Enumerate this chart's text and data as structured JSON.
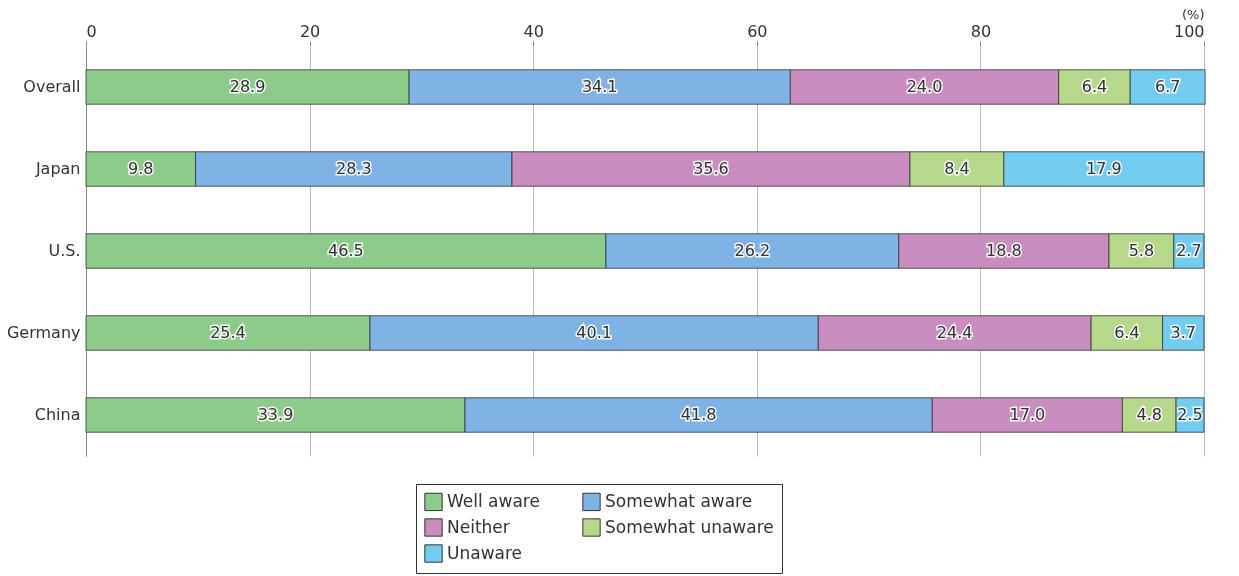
{
  "chart_data": {
    "type": "bar",
    "orientation": "horizontal",
    "stacked": true,
    "xlabel": "(%)",
    "categories": [
      "Overall",
      "Japan",
      "U.S.",
      "Germany",
      "China"
    ],
    "series": [
      {
        "name": "Well aware",
        "color": "#8dcb8b",
        "values": [
          28.9,
          9.8,
          46.5,
          25.4,
          33.9
        ],
        "value_labels": [
          "28.9",
          "9.8",
          "46.5",
          "25.4",
          "33.9"
        ]
      },
      {
        "name": "Somewhat aware",
        "color": "#7fb3e6",
        "values": [
          34.1,
          28.3,
          26.2,
          40.1,
          41.8
        ],
        "value_labels": [
          "34.1",
          "28.3",
          "26.2",
          "40.1",
          "41.8"
        ]
      },
      {
        "name": "Neither",
        "color": "#c98dc0",
        "values": [
          24.0,
          35.6,
          18.8,
          24.4,
          17.0
        ],
        "value_labels": [
          "24.0",
          "35.6",
          "18.8",
          "24.4",
          "17.0"
        ]
      },
      {
        "name": "Somewhat unaware",
        "color": "#b5d88a",
        "values": [
          6.4,
          8.4,
          5.8,
          6.4,
          4.8
        ],
        "value_labels": [
          "6.4",
          "8.4",
          "5.8",
          "6.4",
          "4.8"
        ]
      },
      {
        "name": "Unaware",
        "color": "#72cdf0",
        "values": [
          6.7,
          17.9,
          2.7,
          3.7,
          2.5
        ],
        "value_labels": [
          "6.7",
          "17.9",
          "2.7",
          "3.7",
          "2.5"
        ]
      }
    ],
    "xlim": [
      0,
      100
    ],
    "xticks": [
      0,
      20,
      40,
      60,
      80,
      100
    ],
    "grid": "x",
    "legend": "bottom"
  }
}
